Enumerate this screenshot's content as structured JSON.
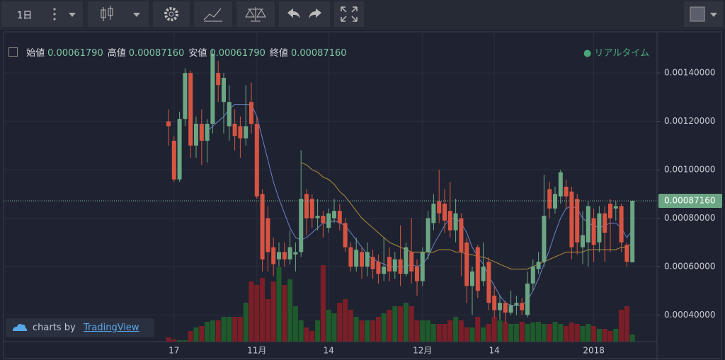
{
  "toolbar": {
    "interval": "1日"
  },
  "ohlc_legend": [
    {
      "label": "始値",
      "value": "0.00061790"
    },
    {
      "label": "高値",
      "value": "0.00087160"
    },
    {
      "label": "安値",
      "value": "0.00061790"
    },
    {
      "label": "終値",
      "value": "0.00087160"
    }
  ],
  "status": "リアルタイム",
  "watermark": {
    "prefix": "charts by",
    "brand": "TradingView"
  },
  "chart_data": {
    "type": "candlestick",
    "up_color": "#6ba583",
    "down_color": "#d75442",
    "volume_up_color": "#1f5a2c",
    "volume_down_color": "#7b1e27",
    "categories": [
      null,
      "17",
      null,
      null,
      null,
      null,
      null,
      null,
      null,
      null,
      null,
      null,
      null,
      null,
      null,
      null,
      "11月",
      null,
      null,
      null,
      null,
      null,
      null,
      null,
      null,
      null,
      null,
      null,
      null,
      "14",
      null,
      null,
      null,
      null,
      null,
      null,
      null,
      null,
      null,
      null,
      null,
      null,
      null,
      null,
      null,
      null,
      "12月",
      null,
      null,
      null,
      null,
      null,
      null,
      null,
      null,
      null,
      null,
      null,
      null,
      "14",
      null,
      null,
      null,
      null,
      null,
      null,
      null,
      null,
      null,
      null,
      null,
      null,
      null,
      null,
      null,
      null,
      null,
      "2018",
      null,
      null,
      null,
      null,
      null,
      null,
      null
    ],
    "open": [
      0.0012,
      0.00112,
      0.00096,
      0.00121,
      0.0014,
      0.0011,
      0.00119,
      0.00112,
      0.00119,
      0.0014,
      0.00128,
      0.00118,
      0.00119,
      0.00118,
      0.00113,
      0.00128,
      0.00119,
      0.0009,
      0.0008,
      0.00068,
      0.00063,
      0.00066,
      0.00063,
      0.00065,
      0.00066,
      0.0009,
      0.00088,
      0.0008,
      0.00081,
      0.00076,
      0.0008,
      0.00083,
      0.00078,
      0.00068,
      0.0006,
      0.00066,
      0.0006,
      0.00064,
      0.00062,
      0.00057,
      0.00064,
      0.00058,
      0.00063,
      0.00057,
      0.00066,
      0.0006,
      0.00054,
      0.00066,
      0.00078,
      0.00087,
      0.00086,
      0.00083,
      0.00075,
      0.0008,
      0.0007,
      0.00052,
      0.00068,
      0.00054,
      0.00062,
      0.00048,
      0.00042,
      0.00045,
      0.00041,
      0.00044,
      0.00045,
      0.0004,
      0.00053,
      0.00059,
      0.00062,
      0.00092,
      0.00084,
      0.00089,
      0.00093,
      0.00091,
      0.00088,
      0.00068,
      0.0007,
      0.0008,
      0.0007,
      0.00082,
      0.00086,
      0.00084,
      0.00085,
      0.00069,
      0.0006179
    ],
    "high": [
      0.00125,
      0.00114,
      0.00124,
      0.00142,
      0.00141,
      0.00122,
      0.00125,
      0.00121,
      0.0015,
      0.00145,
      0.0014,
      0.00135,
      0.00125,
      0.00122,
      0.00135,
      0.00136,
      0.00122,
      0.00092,
      0.00085,
      0.00072,
      0.0007,
      0.0007,
      0.00075,
      0.0007,
      0.00108,
      0.00092,
      0.0009,
      0.00088,
      0.00083,
      0.00084,
      0.00088,
      0.00086,
      0.0008,
      0.0007,
      0.00072,
      0.00068,
      0.0007,
      0.00067,
      0.00065,
      0.00072,
      0.00068,
      0.00066,
      0.00077,
      0.0007,
      0.0008,
      0.00063,
      0.00068,
      0.00083,
      0.0009,
      0.001,
      0.00092,
      0.00095,
      0.00088,
      0.00082,
      0.00072,
      0.0006,
      0.00069,
      0.0007,
      0.00064,
      0.00052,
      0.00048,
      0.00046,
      0.0005,
      0.00048,
      0.00047,
      0.00058,
      0.00063,
      0.00066,
      0.00098,
      0.00095,
      0.00093,
      0.001,
      0.00096,
      0.00093,
      0.0009,
      0.00083,
      0.00087,
      0.00084,
      0.00085,
      0.00085,
      0.00088,
      0.00087,
      0.00086,
      0.0007,
      0.0008716
    ],
    "low": [
      0.0011,
      0.00095,
      0.00095,
      0.00118,
      0.00105,
      0.00105,
      0.00102,
      0.00103,
      0.00115,
      0.00128,
      0.00115,
      0.00112,
      0.00108,
      0.00105,
      0.0011,
      0.00115,
      0.00088,
      0.00058,
      0.00058,
      0.00056,
      0.0006,
      0.0006,
      0.00061,
      0.00058,
      0.00064,
      0.00073,
      0.00076,
      0.00075,
      0.00072,
      0.00074,
      0.00078,
      0.00075,
      0.00066,
      0.00058,
      0.00058,
      0.00055,
      0.00056,
      0.00055,
      0.00053,
      0.00054,
      0.00054,
      0.00055,
      0.00052,
      0.00056,
      0.00053,
      0.00048,
      0.00052,
      0.00063,
      0.00075,
      0.00078,
      0.00074,
      0.00072,
      0.0007,
      0.00056,
      0.00045,
      0.0004,
      0.00047,
      0.00052,
      0.00042,
      0.00039,
      0.00038,
      0.00037,
      0.0004,
      0.0004,
      0.0004,
      0.00039,
      0.0005,
      0.00057,
      0.0006,
      0.0008,
      0.00082,
      0.00086,
      0.00084,
      0.00063,
      0.00065,
      0.00061,
      0.0006,
      0.00062,
      0.00066,
      0.00062,
      0.00066,
      0.00079,
      0.00066,
      0.0006,
      0.0006179
    ],
    "close": [
      0.00118,
      0.00096,
      0.00121,
      0.0014,
      0.0011,
      0.00119,
      0.00112,
      0.00119,
      0.00148,
      0.00135,
      0.00138,
      0.00128,
      0.00114,
      0.00113,
      0.00118,
      0.00119,
      0.00089,
      0.00063,
      0.00066,
      0.00061,
      0.00066,
      0.00063,
      0.00068,
      0.00066,
      0.00088,
      0.0008,
      0.0008,
      0.00081,
      0.00078,
      0.00082,
      0.00083,
      0.00078,
      0.00068,
      0.0006,
      0.00067,
      0.0006,
      0.00066,
      0.00059,
      0.00057,
      0.0006,
      0.00058,
      0.00063,
      0.00057,
      0.00068,
      0.00058,
      0.00054,
      0.00066,
      0.0008,
      0.00086,
      0.00082,
      0.00079,
      0.00075,
      0.00082,
      0.00066,
      0.00052,
      0.00058,
      0.0005,
      0.0006,
      0.00045,
      0.00042,
      0.00045,
      0.00041,
      0.00044,
      0.00045,
      0.00042,
      0.00053,
      0.0006,
      0.00062,
      0.00081,
      0.00084,
      0.0009,
      0.00099,
      0.00089,
      0.00068,
      0.0007,
      0.00073,
      0.00085,
      0.00069,
      0.00082,
      0.00074,
      0.0008,
      0.00085,
      0.0007,
      0.00062,
      0.0008716
    ],
    "volume": [
      6,
      3,
      2,
      2,
      15,
      20,
      22,
      28,
      30,
      30,
      35,
      35,
      35,
      35,
      55,
      85,
      80,
      90,
      60,
      85,
      105,
      80,
      88,
      50,
      30,
      20,
      15,
      30,
      108,
      45,
      40,
      55,
      60,
      45,
      35,
      30,
      30,
      30,
      35,
      40,
      45,
      50,
      50,
      55,
      50,
      30,
      30,
      30,
      25,
      25,
      25,
      30,
      35,
      30,
      20,
      20,
      35,
      20,
      25,
      35,
      30,
      28,
      25,
      25,
      28,
      25,
      27,
      28,
      25,
      25,
      28,
      25,
      22,
      27,
      25,
      22,
      25,
      22,
      18,
      18,
      15,
      18,
      45,
      50,
      10
    ],
    "ma_lines": [
      {
        "color": "#6b83c9",
        "values": [
          null,
          null,
          null,
          null,
          null,
          null,
          null,
          0.00116,
          0.00118,
          0.0012,
          0.00122,
          0.00125,
          0.00127,
          0.00127,
          0.00127,
          0.00127,
          0.00122,
          0.00113,
          0.00104,
          0.00095,
          0.00088,
          0.00082,
          0.00076,
          0.00072,
          0.00071,
          0.00072,
          0.00074,
          0.00076,
          0.00078,
          0.00078,
          0.00079,
          0.00078,
          0.00077,
          0.00074,
          0.00071,
          0.00068,
          0.00065,
          0.00063,
          0.00062,
          0.00061,
          0.0006,
          0.0006,
          0.0006,
          0.0006,
          0.00061,
          0.0006,
          0.00061,
          0.00064,
          0.00069,
          0.00073,
          0.00077,
          0.0008,
          0.0008,
          0.00078,
          0.00074,
          0.00068,
          0.00064,
          0.00061,
          0.00056,
          0.00052,
          0.00048,
          0.00045,
          0.00044,
          0.00044,
          0.00044,
          0.00046,
          0.0005,
          0.00055,
          0.00061,
          0.00067,
          0.00074,
          0.0008,
          0.00084,
          0.00085,
          0.00084,
          0.0008,
          0.00078,
          0.00077,
          0.00076,
          0.00077,
          0.00078,
          0.00078,
          0.00076,
          0.00072,
          0.00075
        ]
      },
      {
        "color": "#b08a3e",
        "values": [
          null,
          null,
          null,
          null,
          null,
          null,
          null,
          null,
          null,
          null,
          null,
          null,
          null,
          null,
          null,
          null,
          null,
          null,
          null,
          null,
          null,
          null,
          null,
          null,
          0.00103,
          0.00102,
          0.001,
          0.00099,
          0.00097,
          0.00096,
          0.00094,
          0.00091,
          0.00089,
          0.00086,
          0.00083,
          0.0008,
          0.00078,
          0.00076,
          0.00074,
          0.00072,
          0.0007,
          0.00069,
          0.00068,
          0.00067,
          0.00066,
          0.00066,
          0.00066,
          0.00066,
          0.00066,
          0.00067,
          0.00067,
          0.00067,
          0.00066,
          0.00066,
          0.00065,
          0.00065,
          0.00064,
          0.00064,
          0.00063,
          0.00062,
          0.00061,
          0.0006,
          0.00059,
          0.00059,
          0.00059,
          0.00059,
          0.0006,
          0.00061,
          0.00062,
          0.00063,
          0.00064,
          0.00065,
          0.00066,
          0.00066,
          0.00066,
          0.00066,
          0.00067,
          0.00067,
          0.00067,
          0.00067,
          0.00067,
          0.00067,
          0.00068,
          0.00068,
          0.0007
        ]
      }
    ],
    "last_price_label": "0.00087160",
    "ylim": [
      0.00029,
      0.00157
    ],
    "yticks": [
      {
        "value": 0.0004,
        "label": "0.00040000"
      },
      {
        "value": 0.0006,
        "label": "0.00060000"
      },
      {
        "value": 0.0008,
        "label": "0.00080000"
      },
      {
        "value": 0.001,
        "label": "0.00100000"
      },
      {
        "value": 0.0012,
        "label": "0.00120000"
      },
      {
        "value": 0.0014,
        "label": "0.00140000"
      }
    ]
  }
}
